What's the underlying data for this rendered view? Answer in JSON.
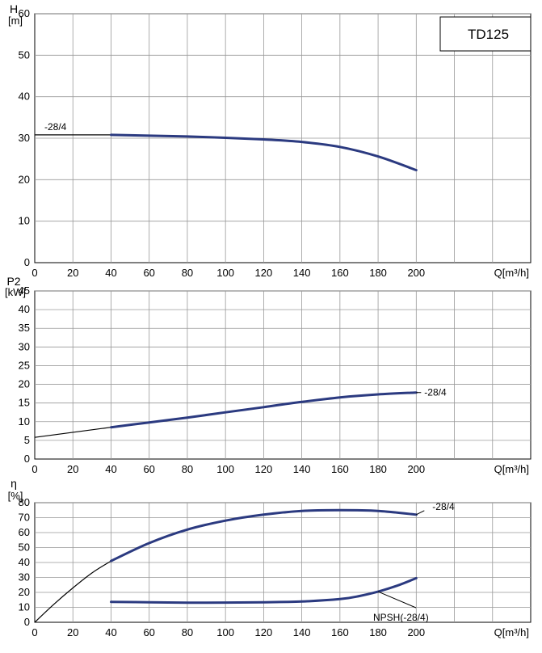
{
  "title_box": "TD125",
  "colors": {
    "curve": "#2b3a80",
    "grid": "#999999",
    "frame": "#000000"
  },
  "chart_data": [
    {
      "type": "line",
      "id": "head",
      "ylabel": "H",
      "yunit": "[m]",
      "xlabel": "Q[m³/h]",
      "xlim": [
        0,
        200
      ],
      "ylim": [
        0,
        60
      ],
      "xticks": [
        0,
        20,
        40,
        60,
        80,
        100,
        120,
        140,
        160,
        180,
        200
      ],
      "yticks": [
        0,
        10,
        20,
        30,
        40,
        50,
        60
      ],
      "series": [
        {
          "label": "-28/4",
          "extension": [
            [
              0,
              30.8
            ],
            [
              40,
              30.8
            ]
          ],
          "x": [
            40,
            60,
            80,
            100,
            120,
            140,
            160,
            180,
            200
          ],
          "y": [
            30.8,
            30.6,
            30.4,
            30.1,
            29.7,
            29.1,
            27.9,
            25.6,
            22.3
          ]
        }
      ]
    },
    {
      "type": "line",
      "id": "power",
      "ylabel": "P2",
      "yunit": "[kW]",
      "xlabel": "Q[m³/h]",
      "xlim": [
        0,
        200
      ],
      "ylim": [
        0,
        45
      ],
      "xticks": [
        0,
        20,
        40,
        60,
        80,
        100,
        120,
        140,
        160,
        180,
        200
      ],
      "yticks": [
        0,
        5,
        10,
        15,
        20,
        25,
        30,
        35,
        40,
        45
      ],
      "series": [
        {
          "label": "-28/4",
          "extension": [
            [
              0,
              5.8
            ],
            [
              40,
              8.5
            ]
          ],
          "x": [
            40,
            60,
            80,
            100,
            120,
            140,
            160,
            180,
            200
          ],
          "y": [
            8.5,
            9.8,
            11.1,
            12.5,
            13.9,
            15.3,
            16.5,
            17.3,
            17.8
          ]
        }
      ]
    },
    {
      "type": "line",
      "id": "efficiency",
      "ylabel": "η",
      "yunit": "[%]",
      "xlabel": "Q[m³/h]",
      "xlim": [
        0,
        200
      ],
      "ylim": [
        0,
        80
      ],
      "xticks": [
        0,
        20,
        40,
        60,
        80,
        100,
        120,
        140,
        160,
        180,
        200
      ],
      "yticks": [
        0,
        10,
        20,
        30,
        40,
        50,
        60,
        70,
        80
      ],
      "series": [
        {
          "label": "-28/4",
          "extension": [
            [
              0,
              0
            ],
            [
              10,
              12
            ],
            [
              20,
              23
            ],
            [
              30,
              33
            ],
            [
              40,
              41
            ]
          ],
          "x": [
            40,
            60,
            80,
            100,
            120,
            140,
            160,
            180,
            200
          ],
          "y": [
            41,
            53,
            62,
            68,
            72,
            74.5,
            75,
            74.5,
            72
          ]
        },
        {
          "label": "NPSH(-28/4)",
          "x": [
            40,
            60,
            80,
            100,
            120,
            140,
            160,
            170,
            180,
            190,
            200
          ],
          "y": [
            13.7,
            13.4,
            13.1,
            13.2,
            13.4,
            13.9,
            15.5,
            17.5,
            20.5,
            24.5,
            29.5
          ]
        }
      ]
    }
  ]
}
